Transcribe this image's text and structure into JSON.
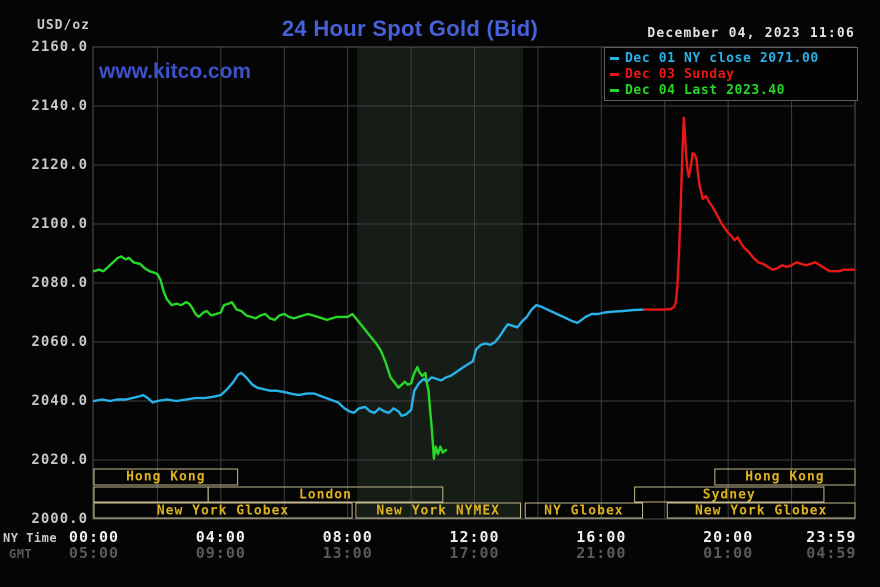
{
  "header": {
    "units_label": "USD/oz",
    "title": "24 Hour Spot Gold (Bid)",
    "watermark": "www.kitco.com",
    "datetime": "December 04, 2023 11:06"
  },
  "legend": {
    "items": [
      {
        "label": "Dec 01 NY close 2071.00",
        "color": "#29b2e8"
      },
      {
        "label": "Dec 03 Sunday",
        "color": "#e81818"
      },
      {
        "label": "Dec 04 Last 2023.40",
        "color": "#28d828"
      }
    ]
  },
  "axes": {
    "ny_row_label": "NY Time",
    "gmt_row_label": "GMT",
    "y_ticks": [
      {
        "label": "2160.0",
        "value": 2160
      },
      {
        "label": "2140.0",
        "value": 2140
      },
      {
        "label": "2120.0",
        "value": 2120
      },
      {
        "label": "2100.0",
        "value": 2100
      },
      {
        "label": "2080.0",
        "value": 2080
      },
      {
        "label": "2060.0",
        "value": 2060
      },
      {
        "label": "2040.0",
        "value": 2040
      },
      {
        "label": "2020.0",
        "value": 2020
      },
      {
        "label": "2000.0",
        "value": 2000
      }
    ],
    "x_ticks": [
      {
        "ny": "00:00",
        "gmt": "05:00",
        "hour": 0,
        "align": "center"
      },
      {
        "ny": "04:00",
        "gmt": "09:00",
        "hour": 4,
        "align": "center"
      },
      {
        "ny": "08:00",
        "gmt": "13:00",
        "hour": 8,
        "align": "center"
      },
      {
        "ny": "12:00",
        "gmt": "17:00",
        "hour": 12,
        "align": "center"
      },
      {
        "ny": "16:00",
        "gmt": "21:00",
        "hour": 16,
        "align": "center"
      },
      {
        "ny": "20:00",
        "gmt": "01:00",
        "hour": 20,
        "align": "center"
      },
      {
        "ny": "23:59",
        "gmt": "04:59",
        "hour": 23.983,
        "align": "right"
      }
    ]
  },
  "sessions": [
    {
      "row": 1,
      "label": "Hong Kong",
      "start": 0,
      "end": 4.53
    },
    {
      "row": 1,
      "label": "Hong Kong",
      "start": 19.58,
      "end": 24
    },
    {
      "row": 2,
      "label": "",
      "start": 0,
      "end": 3.6
    },
    {
      "row": 2,
      "label": "London",
      "start": 3.6,
      "end": 11.0
    },
    {
      "row": 2,
      "label": "Sydney",
      "start": 17.05,
      "end": 23.02
    },
    {
      "row": 3,
      "label": "New York Globex",
      "start": 0,
      "end": 8.14
    },
    {
      "row": 3,
      "label": "New York NYMEX",
      "start": 8.26,
      "end": 13.45
    },
    {
      "row": 3,
      "label": "NY Globex",
      "start": 13.6,
      "end": 17.3
    },
    {
      "row": 3,
      "label": "New York Globex",
      "start": 18.08,
      "end": 24
    }
  ],
  "highlight_band": {
    "start_hour": 8.3,
    "end_hour": 13.53,
    "color": "#161c16"
  },
  "colors": {
    "background": "#050505",
    "grid": "#3e3e3e",
    "frame": "#555555",
    "session_border": "#c3b98c",
    "session_label": "#ddb321",
    "title_blue": "#4661d9",
    "cyan": "#29b2e8",
    "red": "#e81818",
    "green": "#28d828"
  },
  "chart_data": {
    "type": "line",
    "title": "24 Hour Spot Gold (Bid)",
    "xlabel": "NY Time (hours 00:00-23:59)",
    "ylabel": "USD/oz",
    "xlim": [
      0,
      24
    ],
    "ylim": [
      2000,
      2160
    ],
    "grid": true,
    "legend_position": "top-right",
    "series": [
      {
        "name": "Dec 01 NY close 2071.00",
        "color": "#29b2e8",
        "points": [
          [
            0.0,
            2040
          ],
          [
            0.25,
            2040.5
          ],
          [
            0.5,
            2040
          ],
          [
            0.75,
            2040.5
          ],
          [
            1.0,
            2040.5
          ],
          [
            1.2,
            2041
          ],
          [
            1.4,
            2041.5
          ],
          [
            1.55,
            2042
          ],
          [
            1.7,
            2041
          ],
          [
            1.85,
            2039.5
          ],
          [
            2.0,
            2040
          ],
          [
            2.3,
            2040.5
          ],
          [
            2.6,
            2040
          ],
          [
            2.9,
            2040.5
          ],
          [
            3.2,
            2041
          ],
          [
            3.5,
            2041
          ],
          [
            3.8,
            2041.5
          ],
          [
            4.0,
            2042
          ],
          [
            4.2,
            2044
          ],
          [
            4.4,
            2046.5
          ],
          [
            4.55,
            2049
          ],
          [
            4.65,
            2049.5
          ],
          [
            4.8,
            2048
          ],
          [
            5.0,
            2045.5
          ],
          [
            5.15,
            2044.5
          ],
          [
            5.35,
            2044
          ],
          [
            5.55,
            2043.5
          ],
          [
            5.75,
            2043.5
          ],
          [
            6.0,
            2043
          ],
          [
            6.2,
            2042.5
          ],
          [
            6.45,
            2042
          ],
          [
            6.7,
            2042.5
          ],
          [
            6.95,
            2042.5
          ],
          [
            7.2,
            2041.5
          ],
          [
            7.45,
            2040.5
          ],
          [
            7.7,
            2039.5
          ],
          [
            7.9,
            2037.5
          ],
          [
            8.05,
            2036.5
          ],
          [
            8.2,
            2036
          ],
          [
            8.35,
            2037.5
          ],
          [
            8.55,
            2038
          ],
          [
            8.7,
            2036.5
          ],
          [
            8.85,
            2036
          ],
          [
            9.0,
            2037.5
          ],
          [
            9.15,
            2036.5
          ],
          [
            9.3,
            2036
          ],
          [
            9.45,
            2037.5
          ],
          [
            9.6,
            2036.5
          ],
          [
            9.7,
            2035
          ],
          [
            9.85,
            2035.5
          ],
          [
            10.0,
            2037
          ],
          [
            10.1,
            2043.5
          ],
          [
            10.25,
            2046
          ],
          [
            10.4,
            2047.5
          ],
          [
            10.5,
            2046.5
          ],
          [
            10.65,
            2048
          ],
          [
            10.8,
            2047.5
          ],
          [
            10.95,
            2047
          ],
          [
            11.1,
            2048
          ],
          [
            11.25,
            2048.5
          ],
          [
            11.45,
            2050
          ],
          [
            11.65,
            2051.5
          ],
          [
            11.8,
            2052.5
          ],
          [
            11.95,
            2053.5
          ],
          [
            12.05,
            2057.5
          ],
          [
            12.2,
            2059
          ],
          [
            12.35,
            2059.5
          ],
          [
            12.5,
            2059
          ],
          [
            12.65,
            2060
          ],
          [
            12.8,
            2062
          ],
          [
            12.95,
            2064.5
          ],
          [
            13.05,
            2066
          ],
          [
            13.2,
            2065.5
          ],
          [
            13.35,
            2065
          ],
          [
            13.5,
            2067
          ],
          [
            13.65,
            2068.5
          ],
          [
            13.8,
            2071
          ],
          [
            13.95,
            2072.5
          ],
          [
            14.1,
            2072
          ],
          [
            14.3,
            2071
          ],
          [
            14.6,
            2069.5
          ],
          [
            14.9,
            2068
          ],
          [
            15.1,
            2067
          ],
          [
            15.25,
            2066.5
          ],
          [
            15.5,
            2068.5
          ],
          [
            15.7,
            2069.5
          ],
          [
            15.9,
            2069.5
          ],
          [
            16.1,
            2070
          ],
          [
            16.4,
            2070.3
          ],
          [
            16.7,
            2070.5
          ],
          [
            17.0,
            2070.8
          ],
          [
            17.35,
            2071
          ]
        ]
      },
      {
        "name": "Dec 03 Sunday",
        "color": "#e81818",
        "points": [
          [
            17.35,
            2071
          ],
          [
            17.7,
            2071
          ],
          [
            18.0,
            2071
          ],
          [
            18.2,
            2071.2
          ],
          [
            18.3,
            2072
          ],
          [
            18.35,
            2073.5
          ],
          [
            18.4,
            2079
          ],
          [
            18.45,
            2090
          ],
          [
            18.5,
            2105
          ],
          [
            18.55,
            2122
          ],
          [
            18.6,
            2136
          ],
          [
            18.63,
            2132
          ],
          [
            18.67,
            2124
          ],
          [
            18.72,
            2118
          ],
          [
            18.76,
            2116
          ],
          [
            18.82,
            2119.5
          ],
          [
            18.88,
            2124
          ],
          [
            18.95,
            2123.5
          ],
          [
            19.0,
            2122
          ],
          [
            19.05,
            2117
          ],
          [
            19.1,
            2113
          ],
          [
            19.2,
            2108.5
          ],
          [
            19.3,
            2109.5
          ],
          [
            19.4,
            2107.5
          ],
          [
            19.5,
            2106
          ],
          [
            19.6,
            2104
          ],
          [
            19.7,
            2102
          ],
          [
            19.8,
            2100
          ],
          [
            19.9,
            2098.5
          ],
          [
            20.0,
            2097
          ],
          [
            20.1,
            2096
          ],
          [
            20.2,
            2094.5
          ],
          [
            20.3,
            2095.5
          ],
          [
            20.4,
            2093.5
          ],
          [
            20.5,
            2092
          ],
          [
            20.65,
            2090.5
          ],
          [
            20.8,
            2088.5
          ],
          [
            20.95,
            2087
          ],
          [
            21.1,
            2086.5
          ],
          [
            21.25,
            2085.5
          ],
          [
            21.4,
            2084.5
          ],
          [
            21.55,
            2085
          ],
          [
            21.7,
            2086
          ],
          [
            21.85,
            2085.5
          ],
          [
            22.0,
            2086
          ],
          [
            22.15,
            2087
          ],
          [
            22.3,
            2086.5
          ],
          [
            22.45,
            2086
          ],
          [
            22.6,
            2086.5
          ],
          [
            22.75,
            2087
          ],
          [
            22.9,
            2086
          ],
          [
            23.05,
            2085
          ],
          [
            23.2,
            2084
          ],
          [
            23.35,
            2084
          ],
          [
            23.5,
            2084
          ],
          [
            23.65,
            2084.5
          ],
          [
            23.8,
            2084.5
          ],
          [
            23.98,
            2084.5
          ]
        ]
      },
      {
        "name": "Dec 04 Last 2023.40",
        "color": "#28d828",
        "points": [
          [
            0.0,
            2084
          ],
          [
            0.15,
            2084.5
          ],
          [
            0.3,
            2084
          ],
          [
            0.45,
            2085.5
          ],
          [
            0.6,
            2087
          ],
          [
            0.75,
            2088.5
          ],
          [
            0.85,
            2089
          ],
          [
            1.0,
            2088
          ],
          [
            1.1,
            2088.5
          ],
          [
            1.25,
            2087
          ],
          [
            1.45,
            2086.5
          ],
          [
            1.6,
            2085
          ],
          [
            1.75,
            2084
          ],
          [
            1.9,
            2083.5
          ],
          [
            2.0,
            2083
          ],
          [
            2.1,
            2081
          ],
          [
            2.2,
            2077
          ],
          [
            2.3,
            2074.5
          ],
          [
            2.45,
            2072.5
          ],
          [
            2.6,
            2073
          ],
          [
            2.75,
            2072.5
          ],
          [
            2.9,
            2073.5
          ],
          [
            3.0,
            2073
          ],
          [
            3.1,
            2071.5
          ],
          [
            3.2,
            2069.5
          ],
          [
            3.3,
            2068.5
          ],
          [
            3.45,
            2070
          ],
          [
            3.55,
            2070.5
          ],
          [
            3.7,
            2069
          ],
          [
            3.85,
            2069.5
          ],
          [
            4.0,
            2070
          ],
          [
            4.1,
            2072.5
          ],
          [
            4.25,
            2073
          ],
          [
            4.35,
            2073.5
          ],
          [
            4.5,
            2071
          ],
          [
            4.65,
            2070.5
          ],
          [
            4.8,
            2069
          ],
          [
            4.95,
            2068.5
          ],
          [
            5.1,
            2068
          ],
          [
            5.25,
            2069
          ],
          [
            5.4,
            2069.5
          ],
          [
            5.55,
            2068
          ],
          [
            5.7,
            2067.5
          ],
          [
            5.85,
            2069
          ],
          [
            6.0,
            2069.5
          ],
          [
            6.15,
            2068.5
          ],
          [
            6.3,
            2068
          ],
          [
            6.45,
            2068.5
          ],
          [
            6.6,
            2069
          ],
          [
            6.75,
            2069.5
          ],
          [
            6.9,
            2069
          ],
          [
            7.05,
            2068.5
          ],
          [
            7.2,
            2068
          ],
          [
            7.35,
            2067.5
          ],
          [
            7.5,
            2068
          ],
          [
            7.65,
            2068.5
          ],
          [
            7.8,
            2068.5
          ],
          [
            8.0,
            2068.5
          ],
          [
            8.15,
            2069.5
          ],
          [
            8.3,
            2067.5
          ],
          [
            8.45,
            2065.5
          ],
          [
            8.6,
            2063.5
          ],
          [
            8.75,
            2061.5
          ],
          [
            8.9,
            2059.5
          ],
          [
            9.05,
            2057
          ],
          [
            9.2,
            2053
          ],
          [
            9.35,
            2048
          ],
          [
            9.5,
            2046
          ],
          [
            9.6,
            2044.5
          ],
          [
            9.7,
            2045.5
          ],
          [
            9.8,
            2046.5
          ],
          [
            9.9,
            2045.5
          ],
          [
            10.0,
            2046
          ],
          [
            10.1,
            2049.5
          ],
          [
            10.2,
            2051.5
          ],
          [
            10.25,
            2050
          ],
          [
            10.35,
            2048.5
          ],
          [
            10.45,
            2049.5
          ],
          [
            10.5,
            2046
          ],
          [
            10.55,
            2043.5
          ],
          [
            10.6,
            2037
          ],
          [
            10.65,
            2031
          ],
          [
            10.72,
            2020.5
          ],
          [
            10.78,
            2024.5
          ],
          [
            10.85,
            2022
          ],
          [
            10.92,
            2024.5
          ],
          [
            11.0,
            2022.5
          ],
          [
            11.05,
            2023
          ],
          [
            11.1,
            2023.4
          ]
        ]
      }
    ]
  }
}
